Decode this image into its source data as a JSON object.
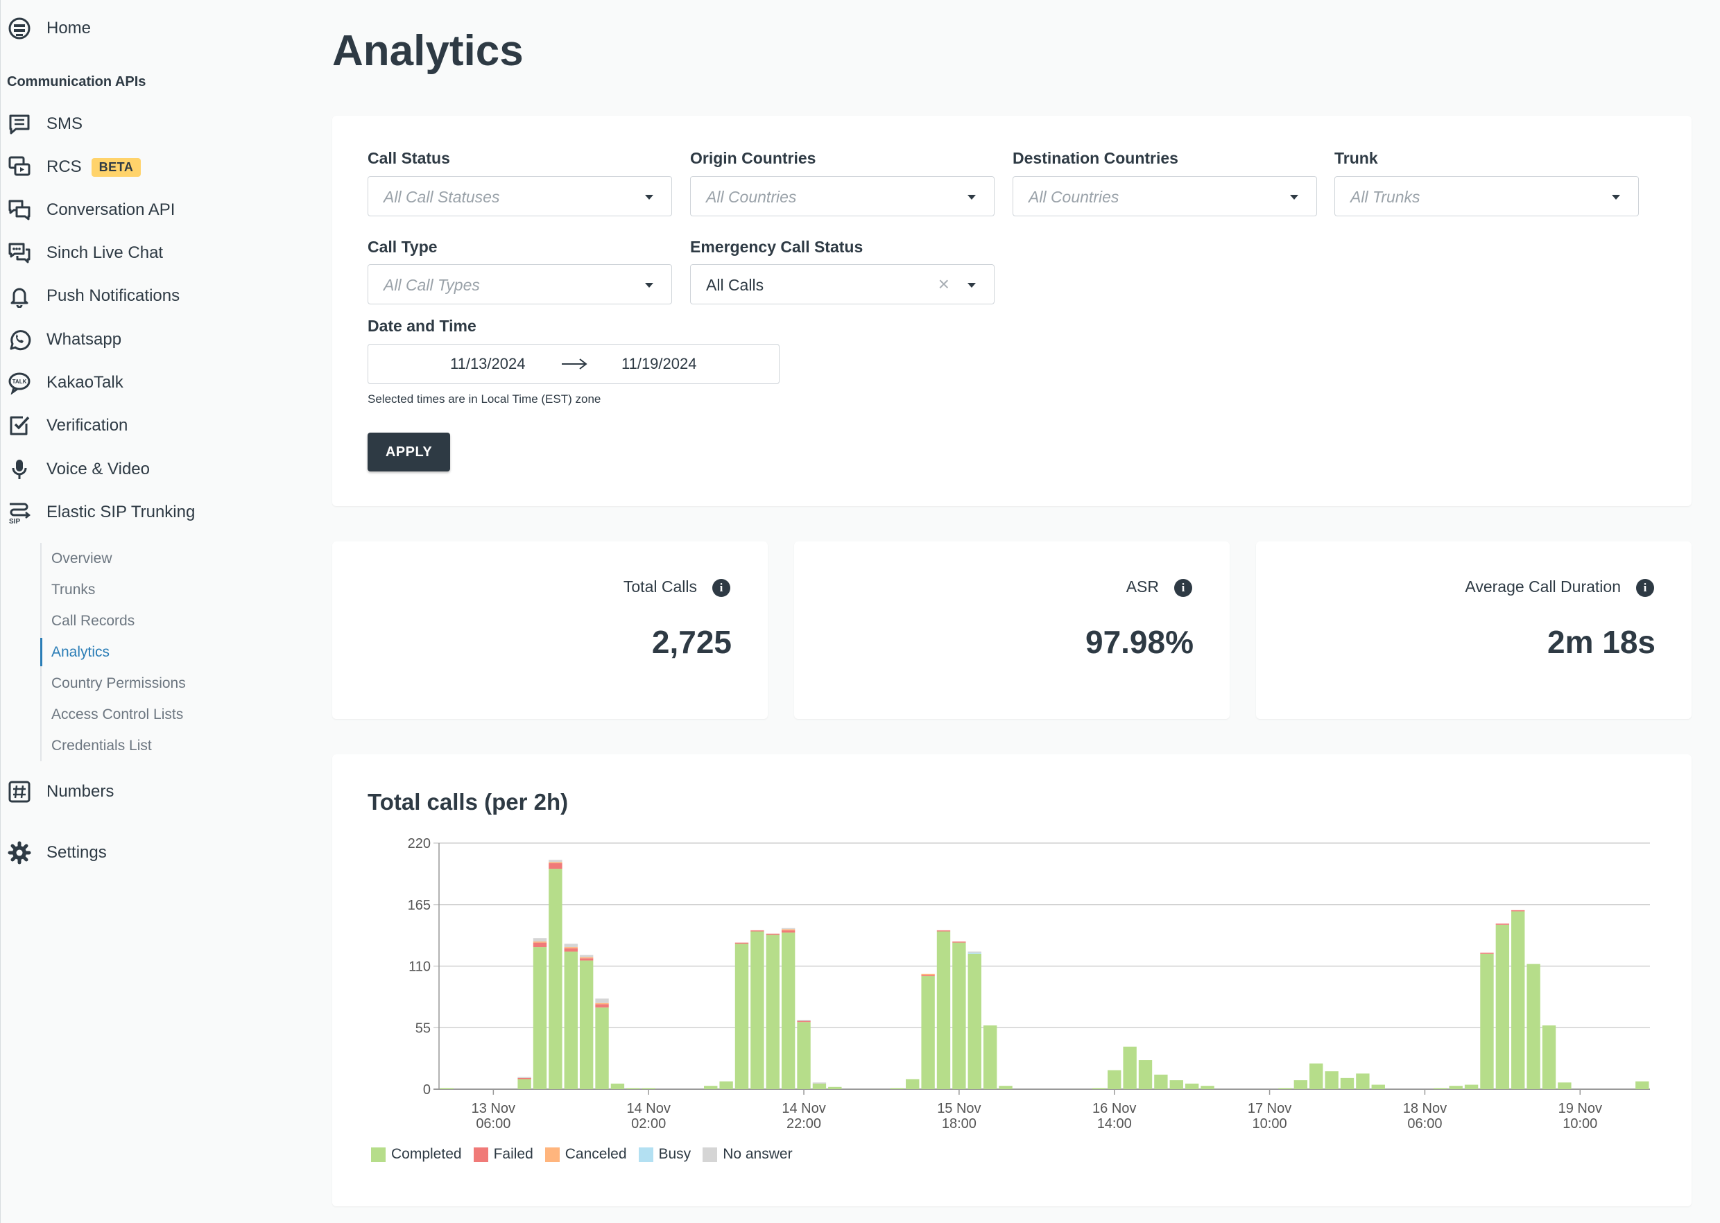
{
  "sidebar": {
    "home": "Home",
    "section_title": "Communication APIs",
    "items": [
      {
        "label": "SMS"
      },
      {
        "label": "RCS",
        "badge": "BETA"
      },
      {
        "label": "Conversation API"
      },
      {
        "label": "Sinch Live Chat"
      },
      {
        "label": "Push Notifications"
      },
      {
        "label": "Whatsapp"
      },
      {
        "label": "KakaoTalk"
      },
      {
        "label": "Verification"
      },
      {
        "label": "Voice & Video"
      },
      {
        "label": "Elastic SIP Trunking"
      }
    ],
    "subitems": [
      "Overview",
      "Trunks",
      "Call Records",
      "Analytics",
      "Country Permissions",
      "Access Control Lists",
      "Credentials List"
    ],
    "numbers": "Numbers",
    "settings": "Settings"
  },
  "page_title": "Analytics",
  "filters": {
    "call_status": {
      "label": "Call Status",
      "placeholder": "All Call Statuses"
    },
    "origin": {
      "label": "Origin Countries",
      "placeholder": "All Countries"
    },
    "destination": {
      "label": "Destination Countries",
      "placeholder": "All Countries"
    },
    "trunk": {
      "label": "Trunk",
      "placeholder": "All Trunks"
    },
    "call_type": {
      "label": "Call Type",
      "placeholder": "All Call Types"
    },
    "emergency": {
      "label": "Emergency Call Status",
      "value": "All Calls"
    },
    "date_time": {
      "label": "Date and Time",
      "from": "11/13/2024",
      "to": "11/19/2024",
      "note": "Selected times are in Local Time (EST) zone"
    },
    "apply": "APPLY"
  },
  "stats": [
    {
      "label": "Total Calls",
      "value": "2,725"
    },
    {
      "label": "ASR",
      "value": "97.98%"
    },
    {
      "label": "Average Call Duration",
      "value": "2m 18s"
    }
  ],
  "colors": {
    "completed": "#b6dd8a",
    "failed": "#f07a78",
    "canceled": "#ffb57d",
    "busy": "#b3e0f2",
    "no_answer": "#d5d5d5",
    "accent": "#2a7db6"
  },
  "chart_data": {
    "type": "bar",
    "stacked": true,
    "title": "Total calls (per 2h)",
    "ylim": [
      0,
      220
    ],
    "yticks": [
      0,
      55,
      110,
      165,
      220
    ],
    "xtick_labels": [
      [
        "13 Nov",
        "06:00"
      ],
      [
        "14 Nov",
        "02:00"
      ],
      [
        "14 Nov",
        "22:00"
      ],
      [
        "15 Nov",
        "18:00"
      ],
      [
        "16 Nov",
        "14:00"
      ],
      [
        "17 Nov",
        "10:00"
      ],
      [
        "18 Nov",
        "06:00"
      ],
      [
        "19 Nov",
        "10:00"
      ]
    ],
    "xtick_bins": [
      3,
      13,
      23,
      33,
      43,
      53,
      63,
      73
    ],
    "bin_count": 78,
    "grid": true,
    "legend_position": "bottom-left",
    "series": [
      {
        "name": "Completed",
        "color": "#b6dd8a",
        "values": [
          1,
          0,
          0,
          0,
          0,
          9,
          127,
          197,
          123,
          115,
          73,
          5,
          1,
          1,
          0,
          0,
          0,
          3,
          7,
          130,
          141,
          138,
          140,
          60,
          5,
          2,
          0,
          0,
          0,
          1,
          9,
          101,
          141,
          131,
          121,
          57,
          3,
          0,
          0,
          0,
          0,
          0,
          1,
          17,
          38,
          26,
          13,
          8,
          5,
          3,
          0,
          0,
          0,
          0,
          1,
          8,
          23,
          16,
          10,
          14,
          4,
          0,
          0,
          0,
          1,
          3,
          4,
          121,
          147,
          159,
          112,
          57,
          6,
          0,
          0,
          0,
          0,
          7
        ]
      },
      {
        "name": "Failed",
        "color": "#f07a78",
        "values": [
          0,
          0,
          0,
          0,
          0,
          1,
          4,
          5,
          3,
          2,
          3,
          0,
          0,
          0,
          0,
          0,
          0,
          0,
          0,
          1,
          1,
          1,
          2,
          1,
          0,
          0,
          0,
          0,
          0,
          0,
          0,
          1,
          1,
          1,
          0,
          0,
          0,
          0,
          0,
          0,
          0,
          0,
          0,
          0,
          0,
          0,
          0,
          0,
          0,
          0,
          0,
          0,
          0,
          0,
          0,
          0,
          0,
          0,
          0,
          0,
          0,
          0,
          0,
          0,
          0,
          0,
          0,
          1,
          1,
          1,
          0,
          0,
          0,
          0,
          0,
          0,
          0,
          0
        ]
      },
      {
        "name": "Canceled",
        "color": "#ffb57d",
        "values": [
          0,
          0,
          0,
          0,
          0,
          0,
          1,
          1,
          1,
          1,
          1,
          0,
          0,
          0,
          0,
          0,
          0,
          0,
          0,
          0,
          0,
          0,
          1,
          0,
          0,
          0,
          0,
          0,
          0,
          0,
          0,
          1,
          0,
          0,
          0,
          0,
          0,
          0,
          0,
          0,
          0,
          0,
          0,
          0,
          0,
          0,
          0,
          0,
          0,
          0,
          0,
          0,
          0,
          0,
          0,
          0,
          0,
          0,
          0,
          0,
          0,
          0,
          0,
          0,
          0,
          0,
          0,
          0,
          0,
          0,
          0,
          0,
          0,
          0,
          0,
          0,
          0,
          0
        ]
      },
      {
        "name": "Busy",
        "color": "#b3e0f2",
        "values": [
          0,
          0,
          0,
          0,
          0,
          0,
          0,
          0,
          0,
          0,
          0,
          0,
          0,
          0,
          0,
          0,
          0,
          0,
          0,
          0,
          0,
          0,
          0,
          0,
          0,
          0,
          0,
          0,
          0,
          0,
          0,
          0,
          0,
          0,
          1,
          0,
          0,
          0,
          0,
          0,
          0,
          0,
          0,
          0,
          0,
          0,
          0,
          0,
          0,
          0,
          0,
          0,
          0,
          0,
          0,
          0,
          0,
          0,
          0,
          0,
          0,
          0,
          0,
          0,
          0,
          0,
          0,
          0,
          0,
          0,
          0,
          0,
          0,
          0,
          0,
          0,
          0,
          0
        ]
      },
      {
        "name": "No answer",
        "color": "#d5d5d5",
        "values": [
          0,
          0,
          0,
          0,
          0,
          1,
          3,
          2,
          3,
          2,
          4,
          0,
          0,
          0,
          0,
          0,
          0,
          0,
          0,
          0,
          0,
          0,
          1,
          1,
          1,
          0,
          0,
          0,
          0,
          0,
          0,
          0,
          0,
          0,
          1,
          0,
          0,
          0,
          0,
          0,
          0,
          0,
          0,
          0,
          0,
          0,
          0,
          0,
          0,
          0,
          0,
          0,
          0,
          0,
          0,
          0,
          0,
          0,
          0,
          0,
          0,
          0,
          0,
          0,
          0,
          0,
          0,
          0,
          0,
          0,
          0,
          0,
          0,
          0,
          0,
          0,
          0,
          0
        ]
      }
    ]
  }
}
